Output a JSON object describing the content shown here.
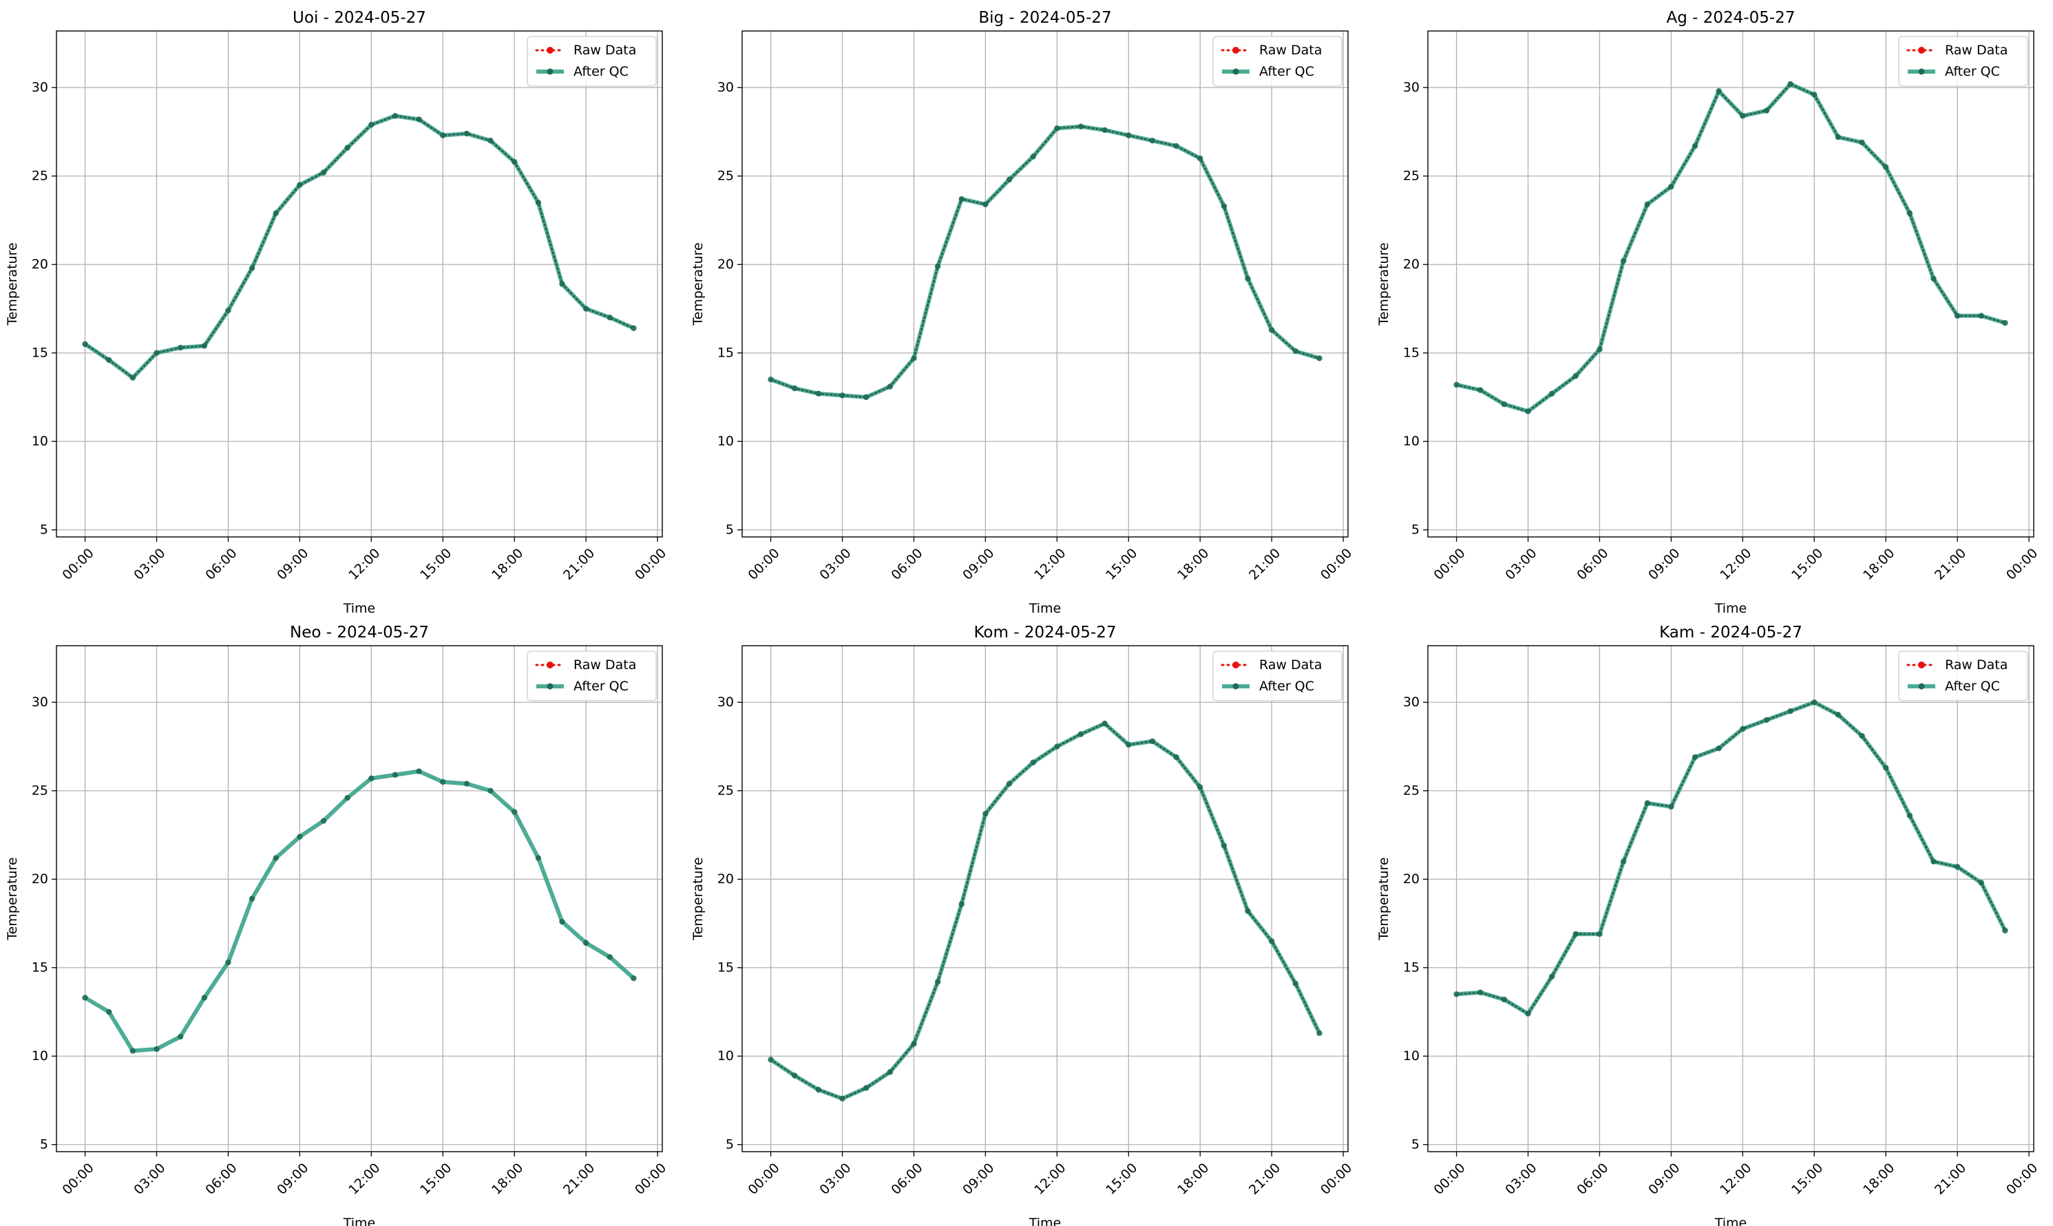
{
  "figure": {
    "colors": {
      "raw": "#e8120c",
      "qc": "#2e9e82",
      "qc_marker": "#1f6b55",
      "grid": "#b0b0b0",
      "axes": "#000000",
      "legend_border": "#cccccc"
    }
  },
  "chart_data": [
    {
      "type": "line",
      "title": "Uoi - 2024-05-27",
      "xlabel": "Time",
      "ylabel": "Temperature",
      "x_ticks": [
        "00:00",
        "03:00",
        "06:00",
        "09:00",
        "12:00",
        "15:00",
        "18:00",
        "21:00",
        "00:00"
      ],
      "y_ticks": [
        "5",
        "10",
        "15",
        "20",
        "25",
        "30"
      ],
      "xlim_hours": [
        -1.2,
        24.2
      ],
      "ylim": [
        4.6,
        33.2
      ],
      "grid": true,
      "legend_position": "top-right",
      "x_hours": [
        0,
        1,
        2,
        3,
        4,
        5,
        6,
        7,
        8,
        9,
        10,
        11,
        12,
        13,
        14,
        15,
        16,
        17,
        18,
        19,
        20,
        21,
        22,
        23
      ],
      "series": [
        {
          "name": "Raw Data",
          "values": [
            15.5,
            14.6,
            13.6,
            15.0,
            15.3,
            15.4,
            17.4,
            19.8,
            22.9,
            24.5,
            25.2,
            26.6,
            27.9,
            28.4,
            28.2,
            27.3,
            27.4,
            27.0,
            25.8,
            23.5,
            18.9,
            17.5,
            17.0,
            16.4
          ]
        },
        {
          "name": "After QC",
          "values": [
            15.5,
            14.6,
            13.6,
            15.0,
            15.3,
            15.4,
            17.4,
            19.8,
            22.9,
            24.5,
            25.2,
            26.6,
            27.9,
            28.4,
            28.2,
            27.3,
            27.4,
            27.0,
            25.8,
            23.5,
            18.9,
            17.5,
            17.0,
            16.4
          ]
        }
      ]
    },
    {
      "type": "line",
      "title": "Big - 2024-05-27",
      "xlabel": "Time",
      "ylabel": "Temperature",
      "x_ticks": [
        "00:00",
        "03:00",
        "06:00",
        "09:00",
        "12:00",
        "15:00",
        "18:00",
        "21:00",
        "00:00"
      ],
      "y_ticks": [
        "5",
        "10",
        "15",
        "20",
        "25",
        "30"
      ],
      "xlim_hours": [
        -1.2,
        24.2
      ],
      "ylim": [
        4.6,
        33.2
      ],
      "grid": true,
      "legend_position": "top-right",
      "x_hours": [
        0,
        1,
        2,
        3,
        4,
        5,
        6,
        7,
        8,
        9,
        10,
        11,
        12,
        13,
        14,
        15,
        16,
        17,
        18,
        19,
        20,
        21,
        22,
        23
      ],
      "series": [
        {
          "name": "Raw Data",
          "values": [
            13.5,
            13.0,
            12.7,
            12.6,
            12.5,
            13.1,
            14.7,
            19.9,
            23.7,
            23.4,
            24.8,
            26.1,
            27.7,
            27.8,
            27.6,
            27.3,
            27.0,
            26.7,
            26.0,
            23.3,
            19.2,
            16.3,
            15.1,
            14.7
          ]
        },
        {
          "name": "After QC",
          "values": [
            13.5,
            13.0,
            12.7,
            12.6,
            12.5,
            13.1,
            14.7,
            19.9,
            23.7,
            23.4,
            24.8,
            26.1,
            27.7,
            27.8,
            27.6,
            27.3,
            27.0,
            26.7,
            26.0,
            23.3,
            19.2,
            16.3,
            15.1,
            14.7
          ]
        }
      ]
    },
    {
      "type": "line",
      "title": "Ag - 2024-05-27",
      "xlabel": "Time",
      "ylabel": "Temperature",
      "x_ticks": [
        "00:00",
        "03:00",
        "06:00",
        "09:00",
        "12:00",
        "15:00",
        "18:00",
        "21:00",
        "00:00"
      ],
      "y_ticks": [
        "5",
        "10",
        "15",
        "20",
        "25",
        "30"
      ],
      "xlim_hours": [
        -1.2,
        24.2
      ],
      "ylim": [
        4.6,
        33.2
      ],
      "grid": true,
      "legend_position": "top-right",
      "x_hours": [
        0,
        1,
        2,
        3,
        4,
        5,
        6,
        7,
        8,
        9,
        10,
        11,
        12,
        13,
        14,
        15,
        16,
        17,
        18,
        19,
        20,
        21,
        22,
        23
      ],
      "series": [
        {
          "name": "Raw Data",
          "values": [
            13.2,
            12.9,
            12.1,
            11.7,
            12.7,
            13.7,
            15.2,
            20.2,
            23.4,
            24.4,
            26.7,
            29.8,
            28.4,
            28.7,
            30.2,
            29.6,
            27.2,
            26.9,
            25.5,
            22.9,
            19.2,
            17.1,
            17.1,
            16.7
          ]
        },
        {
          "name": "After QC",
          "values": [
            13.2,
            12.9,
            12.1,
            11.7,
            12.7,
            13.7,
            15.2,
            20.2,
            23.4,
            24.4,
            26.7,
            29.8,
            28.4,
            28.7,
            30.2,
            29.6,
            27.2,
            26.9,
            25.5,
            22.9,
            19.2,
            17.1,
            17.1,
            16.7
          ]
        }
      ]
    },
    {
      "type": "line",
      "title": "Neo - 2024-05-27",
      "xlabel": "Time",
      "ylabel": "Temperature",
      "x_ticks": [
        "00:00",
        "03:00",
        "06:00",
        "09:00",
        "12:00",
        "15:00",
        "18:00",
        "21:00",
        "00:00"
      ],
      "y_ticks": [
        "5",
        "10",
        "15",
        "20",
        "25",
        "30"
      ],
      "xlim_hours": [
        -1.2,
        24.2
      ],
      "ylim": [
        4.6,
        33.2
      ],
      "grid": true,
      "legend_position": "top-right",
      "x_hours": [
        0,
        1,
        2,
        3,
        4,
        5,
        6,
        7,
        8,
        9,
        10,
        11,
        12,
        13,
        14,
        15,
        16,
        17,
        18,
        19,
        20,
        21,
        22,
        23
      ],
      "series": [
        {
          "name": "Raw Data",
          "values": [
            13.3,
            12.5,
            10.3,
            10.4,
            11.1,
            13.3,
            15.3,
            18.9,
            21.2,
            22.4,
            23.3,
            24.6,
            25.7,
            25.9,
            26.1,
            25.5,
            25.4,
            25.0,
            23.8,
            21.2,
            17.6,
            16.4,
            15.6,
            14.4
          ]
        },
        {
          "name": "After QC",
          "values": [
            13.3,
            12.5,
            10.3,
            10.4,
            11.1,
            13.3,
            15.3,
            18.9,
            21.2,
            22.4,
            23.3,
            24.6,
            25.7,
            25.9,
            26.1,
            25.5,
            25.4,
            25.0,
            23.8,
            21.2,
            17.6,
            16.4,
            15.6,
            14.4
          ]
        }
      ]
    },
    {
      "type": "line",
      "title": "Kom - 2024-05-27",
      "xlabel": "Time",
      "ylabel": "Temperature",
      "x_ticks": [
        "00:00",
        "03:00",
        "06:00",
        "09:00",
        "12:00",
        "15:00",
        "18:00",
        "21:00",
        "00:00"
      ],
      "y_ticks": [
        "5",
        "10",
        "15",
        "20",
        "25",
        "30"
      ],
      "xlim_hours": [
        -1.2,
        24.2
      ],
      "ylim": [
        4.6,
        33.2
      ],
      "grid": true,
      "legend_position": "top-right",
      "x_hours": [
        0,
        1,
        2,
        3,
        4,
        5,
        6,
        7,
        8,
        9,
        10,
        11,
        12,
        13,
        14,
        15,
        16,
        17,
        18,
        19,
        20,
        21,
        22,
        23
      ],
      "series": [
        {
          "name": "Raw Data",
          "values": [
            9.8,
            8.9,
            8.1,
            7.6,
            8.2,
            9.1,
            10.7,
            14.2,
            18.6,
            23.7,
            25.4,
            26.6,
            27.5,
            28.2,
            28.8,
            27.6,
            27.8,
            26.9,
            25.2,
            21.9,
            18.2,
            16.5,
            14.1,
            11.3
          ]
        },
        {
          "name": "After QC",
          "values": [
            9.8,
            8.9,
            8.1,
            7.6,
            8.2,
            9.1,
            10.7,
            14.2,
            18.6,
            23.7,
            25.4,
            26.6,
            27.5,
            28.2,
            28.8,
            27.6,
            27.8,
            26.9,
            25.2,
            21.9,
            18.2,
            16.5,
            14.1,
            11.3
          ]
        }
      ]
    },
    {
      "type": "line",
      "title": "Kam - 2024-05-27",
      "xlabel": "Time",
      "ylabel": "Temperature",
      "x_ticks": [
        "00:00",
        "03:00",
        "06:00",
        "09:00",
        "12:00",
        "15:00",
        "18:00",
        "21:00",
        "00:00"
      ],
      "y_ticks": [
        "5",
        "10",
        "15",
        "20",
        "25",
        "30"
      ],
      "xlim_hours": [
        -1.2,
        24.2
      ],
      "ylim": [
        4.6,
        33.2
      ],
      "grid": true,
      "legend_position": "top-right",
      "x_hours": [
        0,
        1,
        2,
        3,
        4,
        5,
        6,
        7,
        8,
        9,
        10,
        11,
        12,
        13,
        14,
        15,
        16,
        17,
        18,
        19,
        20,
        21,
        22,
        23
      ],
      "series": [
        {
          "name": "Raw Data",
          "values": [
            13.5,
            13.6,
            13.2,
            12.4,
            14.5,
            16.9,
            16.9,
            21.0,
            24.3,
            24.1,
            26.9,
            27.4,
            28.5,
            29.0,
            29.5,
            30.0,
            29.3,
            28.1,
            26.3,
            23.6,
            21.0,
            20.7,
            19.8,
            17.1
          ]
        },
        {
          "name": "After QC",
          "values": [
            13.5,
            13.6,
            13.2,
            12.4,
            14.5,
            16.9,
            16.9,
            21.0,
            24.3,
            24.1,
            26.9,
            27.4,
            28.5,
            29.0,
            29.5,
            30.0,
            29.3,
            28.1,
            26.3,
            23.6,
            21.0,
            20.7,
            19.8,
            17.1
          ]
        }
      ]
    }
  ]
}
